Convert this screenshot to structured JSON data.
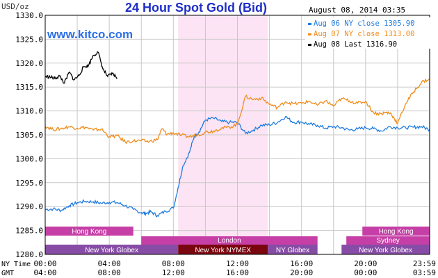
{
  "chart_data": {
    "type": "line",
    "title": "24 Hour Spot Gold (Bid)",
    "timestamp": "August 08, 2014 03:35",
    "watermark": "www.kitco.com",
    "ylabel": "USD/oz",
    "ylim": [
      1280,
      1330
    ],
    "yticks": [
      "1280.0",
      "1285.0",
      "1290.0",
      "1295.0",
      "1300.0",
      "1305.0",
      "1310.0",
      "1315.0",
      "1320.0",
      "1325.0",
      "1330.0"
    ],
    "xlim": [
      0,
      24
    ],
    "xtick_rows": [
      {
        "label": "NY Time",
        "ticks": [
          "00:00",
          "04:00",
          "08:00",
          "12:00",
          "16:00",
          "20:00",
          "23:59"
        ]
      },
      {
        "label": "GMT",
        "ticks": [
          "04:00",
          "08:00",
          "12:00",
          "16:00",
          "20:00",
          "00:00",
          "03:59"
        ]
      }
    ],
    "grid": true,
    "legend_position": "top-right",
    "highlight_band": {
      "x0": 8.3,
      "x1": 13.9,
      "color": "#fce4f4"
    },
    "series": [
      {
        "name": "Aug 06 NY close 1305.90",
        "color": "#1f7be0",
        "x": [
          0,
          0.5,
          1,
          1.5,
          2,
          2.5,
          3,
          3.5,
          4,
          4.5,
          5,
          5.5,
          6,
          6.3,
          6.6,
          7,
          7.5,
          8,
          8.3,
          8.6,
          9,
          9.3,
          9.6,
          10,
          10.5,
          11,
          11.5,
          12,
          12.5,
          13,
          13.5,
          14,
          14.5,
          15,
          15.5,
          16,
          16.5,
          17,
          17.5,
          18,
          18.5,
          19,
          19.5,
          20,
          20.5,
          21,
          21.5,
          22,
          22.5,
          23,
          23.5,
          23.99
        ],
        "values": [
          1289.4,
          1289.5,
          1289.2,
          1290.2,
          1290.8,
          1291.1,
          1291.0,
          1290.7,
          1290.9,
          1290.8,
          1290.2,
          1289.4,
          1288.7,
          1288.6,
          1288.9,
          1288.1,
          1289.0,
          1289.7,
          1294.0,
          1298.5,
          1301.3,
          1304.6,
          1305.6,
          1308.1,
          1308.5,
          1307.8,
          1307.6,
          1307.6,
          1305.3,
          1306.0,
          1307.0,
          1307.1,
          1307.6,
          1308.8,
          1307.6,
          1307.7,
          1307.2,
          1307.0,
          1306.4,
          1306.7,
          1306.5,
          1306.0,
          1306.2,
          1306.5,
          1306.3,
          1305.8,
          1306.7,
          1306.5,
          1306.5,
          1306.6,
          1306.7,
          1306.1
        ]
      },
      {
        "name": "Aug 07 NY close 1313.00",
        "color": "#f08c1a",
        "x": [
          0,
          0.5,
          1,
          1.5,
          2,
          2.5,
          3,
          3.5,
          4,
          4.5,
          5,
          5.5,
          6,
          6.5,
          7,
          7.3,
          7.6,
          8,
          8.5,
          9,
          9.5,
          10,
          10.5,
          11,
          11.5,
          12,
          12.5,
          13,
          13.5,
          14,
          14.5,
          15,
          15.5,
          16,
          16.5,
          17,
          17.5,
          18,
          18.5,
          19,
          19.5,
          20,
          20.5,
          21,
          21.3,
          21.6,
          22,
          22.5,
          23,
          23.5,
          23.99
        ],
        "values": [
          1306.8,
          1306.1,
          1306.3,
          1306.7,
          1306.4,
          1306.6,
          1306.0,
          1306.2,
          1304.6,
          1304.8,
          1303.5,
          1303.7,
          1303.8,
          1303.6,
          1304.0,
          1306.3,
          1305.1,
          1305.4,
          1304.9,
          1304.6,
          1304.9,
          1305.6,
          1305.8,
          1306.4,
          1306.6,
          1307.2,
          1313.0,
          1312.4,
          1312.7,
          1311.4,
          1310.7,
          1311.9,
          1311.5,
          1311.6,
          1312.0,
          1311.2,
          1312.1,
          1311.0,
          1312.6,
          1312.1,
          1311.6,
          1312.0,
          1309.6,
          1309.4,
          1309.7,
          1309.4,
          1307.4,
          1311.5,
          1314.0,
          1316.0,
          1316.7
        ]
      },
      {
        "name": "Aug 08 Last 1316.90",
        "color": "#000000",
        "x": [
          0,
          0.3,
          0.6,
          0.9,
          1.2,
          1.5,
          1.8,
          2.1,
          2.4,
          2.7,
          3.0,
          3.3,
          3.6,
          3.9,
          4.2,
          4.5
        ],
        "values": [
          1317.2,
          1317.1,
          1316.8,
          1317.3,
          1315.8,
          1318.1,
          1316.5,
          1317.4,
          1319.2,
          1319.5,
          1321.6,
          1322.3,
          1318.8,
          1317.2,
          1317.8,
          1316.9
        ]
      }
    ],
    "sessions": [
      {
        "label": "Hong Kong",
        "x0": 0,
        "x1": 5.5,
        "row": 0,
        "color": "#c53fa6"
      },
      {
        "label": "Hong Kong",
        "x0": 19.8,
        "x1": 24,
        "row": 0,
        "color": "#c53fa6"
      },
      {
        "label": "London",
        "x0": 6.0,
        "x1": 17.0,
        "row": 1,
        "color": "#c53fa6"
      },
      {
        "label": "Sydney",
        "x0": 18.8,
        "x1": 24,
        "row": 1,
        "color": "#c53fa6"
      },
      {
        "label": "New York Globex",
        "x0": 0,
        "x1": 8.3,
        "row": 2,
        "color": "#874da6"
      },
      {
        "label": "New York NYMEX",
        "x0": 8.3,
        "x1": 13.9,
        "row": 2,
        "color": "#7a0610"
      },
      {
        "label": "NY Globex",
        "x0": 13.9,
        "x1": 17.0,
        "row": 2,
        "color": "#874da6"
      },
      {
        "label": "New York Globex",
        "x0": 18.5,
        "x1": 24,
        "row": 2,
        "color": "#874da6"
      }
    ]
  }
}
